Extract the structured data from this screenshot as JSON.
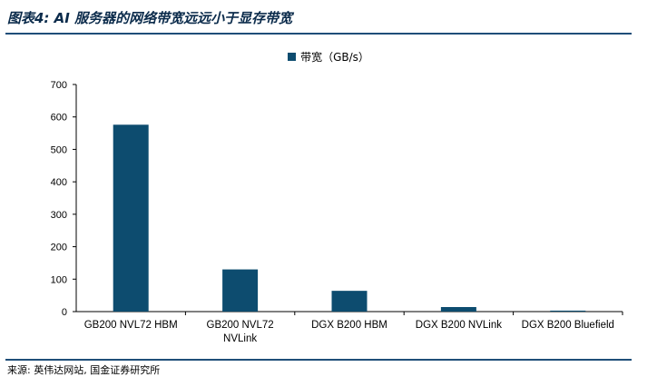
{
  "header": {
    "title": "图表4: AI 服务器的网络带宽远远小于显存带宽"
  },
  "footer": {
    "source": "来源: 英伟达网站, 国金证券研究所"
  },
  "chart_data": {
    "type": "bar",
    "categories": [
      "GB200 NVL72 HBM",
      "GB200 NVL72 NVLink",
      "DGX B200 HBM",
      "DGX B200 NVLink",
      "DGX B200 Bluefield"
    ],
    "category_lines": [
      [
        "GB200 NVL72 HBM"
      ],
      [
        "GB200 NVL72",
        "NVLink"
      ],
      [
        "DGX B200 HBM"
      ],
      [
        "DGX B200 NVLink"
      ],
      [
        "DGX B200 Bluefield"
      ]
    ],
    "series": [
      {
        "name": "带宽（GB/s）",
        "color": "#0d4c6f",
        "values": [
          576,
          130,
          64,
          14,
          3
        ]
      }
    ],
    "ylim": [
      0,
      700
    ],
    "yticks": [
      0,
      100,
      200,
      300,
      400,
      500,
      600,
      700
    ],
    "grid": false,
    "legend_position": "top-center"
  }
}
